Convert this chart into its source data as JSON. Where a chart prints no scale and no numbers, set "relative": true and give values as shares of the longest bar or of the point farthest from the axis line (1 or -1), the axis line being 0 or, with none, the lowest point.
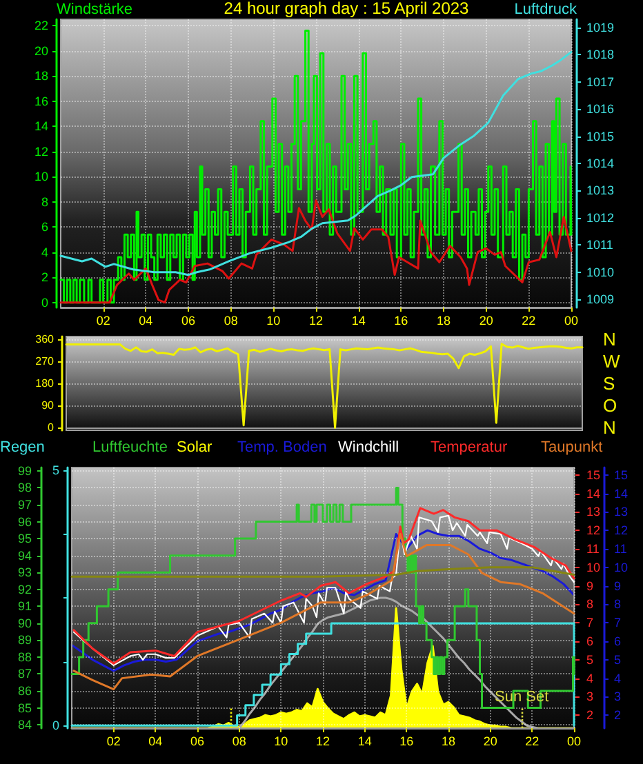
{
  "chart_data": [
    {
      "type": "line",
      "title": "24 hour graph day : 15 April 2023",
      "ylabel": "Windstärke",
      "y2label": "Luftdruck",
      "xlim": [
        "2023-04-15T00:00",
        "2023-04-16T00:00"
      ],
      "xticks": [
        {
          "value": "2023-04-15T02:00",
          "label": "02"
        },
        {
          "value": "2023-04-15T04:00",
          "label": "04"
        },
        {
          "value": "2023-04-15T06:00",
          "label": "06"
        },
        {
          "value": "2023-04-15T08:00",
          "label": "08"
        },
        {
          "value": "2023-04-15T10:00",
          "label": "10"
        },
        {
          "value": "2023-04-15T12:00",
          "label": "12"
        },
        {
          "value": "2023-04-15T14:00",
          "label": "14"
        },
        {
          "value": "2023-04-15T16:00",
          "label": "16"
        },
        {
          "value": "2023-04-15T18:00",
          "label": "18"
        },
        {
          "value": "2023-04-15T20:00",
          "label": "20"
        },
        {
          "value": "2023-04-15T22:00",
          "label": "22"
        },
        {
          "value": "2023-04-16T00:00",
          "label": "00"
        }
      ],
      "ylim": [
        -0.4,
        22.5
      ],
      "yticks": [
        0,
        2,
        4,
        6,
        8,
        10,
        12,
        14,
        16,
        18,
        20,
        22
      ],
      "y2lim": [
        1008.7,
        1019.3
      ],
      "y2ticks": [
        1009,
        1010,
        1011,
        1012,
        1013,
        1014,
        1015,
        1016,
        1017,
        1018,
        1019
      ],
      "grid": true,
      "series": [
        {
          "type": "step",
          "color": "#00ee00",
          "x": [
            "2023-04-15T00:00",
            "2023-04-15T00:09",
            "2023-04-15T00:18",
            "2023-04-15T00:27",
            "2023-04-15T00:36",
            "2023-04-15T00:45",
            "2023-04-15T00:54",
            "2023-04-15T01:06",
            "2023-04-15T01:18",
            "2023-04-15T01:27",
            "2023-04-15T01:42",
            "2023-04-15T01:51",
            "2023-04-15T02:00",
            "2023-04-15T02:12",
            "2023-04-15T02:21",
            "2023-04-15T02:30",
            "2023-04-15T02:42",
            "2023-04-15T02:51",
            "2023-04-15T03:00",
            "2023-04-15T03:09",
            "2023-04-15T03:18",
            "2023-04-15T03:27",
            "2023-04-15T03:34",
            "2023-04-15T03:39",
            "2023-04-15T03:48",
            "2023-04-15T03:57",
            "2023-04-15T04:06",
            "2023-04-15T04:15",
            "2023-04-15T04:24",
            "2023-04-15T04:33",
            "2023-04-15T04:42",
            "2023-04-15T04:51",
            "2023-04-15T05:00",
            "2023-04-15T05:09",
            "2023-04-15T05:18",
            "2023-04-15T05:27",
            "2023-04-15T05:36",
            "2023-04-15T05:45",
            "2023-04-15T05:54",
            "2023-04-15T06:03",
            "2023-04-15T06:12",
            "2023-04-15T06:18",
            "2023-04-15T06:24",
            "2023-04-15T06:33",
            "2023-04-15T06:39",
            "2023-04-15T06:48",
            "2023-04-15T06:57",
            "2023-04-15T07:06",
            "2023-04-15T07:15",
            "2023-04-15T07:24",
            "2023-04-15T07:33",
            "2023-04-15T07:42",
            "2023-04-15T07:51",
            "2023-04-15T08:06",
            "2023-04-15T08:15",
            "2023-04-15T08:24",
            "2023-04-15T08:33",
            "2023-04-15T08:42",
            "2023-04-15T08:54",
            "2023-04-15T09:03",
            "2023-04-15T09:12",
            "2023-04-15T09:24",
            "2023-04-15T09:33",
            "2023-04-15T09:42",
            "2023-04-15T09:57",
            "2023-04-15T10:06",
            "2023-04-15T10:15",
            "2023-04-15T10:24",
            "2023-04-15T10:33",
            "2023-04-15T10:42",
            "2023-04-15T10:51",
            "2023-04-15T11:00",
            "2023-04-15T11:09",
            "2023-04-15T11:18",
            "2023-04-15T11:30",
            "2023-04-15T11:39",
            "2023-04-15T11:48",
            "2023-04-15T11:54",
            "2023-04-15T12:03",
            "2023-04-15T12:12",
            "2023-04-15T12:21",
            "2023-04-15T12:30",
            "2023-04-15T12:39",
            "2023-04-15T12:48",
            "2023-04-15T12:57",
            "2023-04-15T13:12",
            "2023-04-15T13:21",
            "2023-04-15T13:30",
            "2023-04-15T13:39",
            "2023-04-15T13:48",
            "2023-04-15T13:57",
            "2023-04-15T14:12",
            "2023-04-15T14:21",
            "2023-04-15T14:30",
            "2023-04-15T14:42",
            "2023-04-15T14:51",
            "2023-04-15T15:00",
            "2023-04-15T15:09",
            "2023-04-15T15:18",
            "2023-04-15T15:30",
            "2023-04-15T15:39",
            "2023-04-15T15:48",
            "2023-04-15T16:00",
            "2023-04-15T16:09",
            "2023-04-15T16:18",
            "2023-04-15T16:27",
            "2023-04-15T16:36",
            "2023-04-15T16:48",
            "2023-04-15T16:57",
            "2023-04-15T17:06",
            "2023-04-15T17:15",
            "2023-04-15T17:24",
            "2023-04-15T17:36",
            "2023-04-15T17:48",
            "2023-04-15T17:57",
            "2023-04-15T18:06",
            "2023-04-15T18:15",
            "2023-04-15T18:24",
            "2023-04-15T18:42",
            "2023-04-15T18:51",
            "2023-04-15T19:00",
            "2023-04-15T19:09",
            "2023-04-15T19:18",
            "2023-04-15T19:30",
            "2023-04-15T19:39",
            "2023-04-15T19:48",
            "2023-04-15T19:57",
            "2023-04-15T20:06",
            "2023-04-15T20:15",
            "2023-04-15T20:24",
            "2023-04-15T20:33",
            "2023-04-15T20:48",
            "2023-04-15T20:57",
            "2023-04-15T21:06",
            "2023-04-15T21:15",
            "2023-04-15T21:24",
            "2023-04-15T21:33",
            "2023-04-15T21:42",
            "2023-04-15T21:51",
            "2023-04-15T22:00",
            "2023-04-15T22:12",
            "2023-04-15T22:21",
            "2023-04-15T22:30",
            "2023-04-15T22:39",
            "2023-04-15T22:48",
            "2023-04-15T22:57",
            "2023-04-15T23:06",
            "2023-04-15T23:12",
            "2023-04-15T23:18",
            "2023-04-15T23:27",
            "2023-04-15T23:36",
            "2023-04-15T23:45",
            "2023-04-15T23:58",
            "2023-04-16T00:00"
          ],
          "values": [
            1.8,
            0,
            1.8,
            0,
            1.8,
            0,
            1.8,
            0,
            1.8,
            0,
            0,
            1.8,
            0,
            1.8,
            0,
            1.8,
            3.6,
            1.8,
            5.4,
            3.6,
            5.4,
            1.8,
            7.2,
            3.6,
            5.4,
            1.8,
            5.4,
            3.6,
            1.8,
            5.4,
            3.6,
            5.4,
            1.8,
            5.4,
            3.6,
            5.4,
            1.8,
            5.4,
            3.6,
            5.4,
            1.8,
            7.2,
            3.6,
            10.8,
            5.4,
            9.0,
            3.6,
            7.2,
            5.4,
            9.0,
            3.6,
            7.2,
            5.4,
            10.8,
            5.4,
            9.0,
            3.6,
            7.2,
            10.8,
            5.4,
            9.0,
            14.4,
            5.4,
            10.8,
            16.2,
            7.2,
            12.6,
            5.4,
            10.8,
            7.2,
            12.6,
            18.0,
            9.0,
            14.4,
            21.6,
            7.2,
            12.6,
            18.0,
            9.0,
            19.8,
            7.2,
            12.6,
            5.4,
            10.8,
            7.2,
            18.0,
            9.0,
            12.6,
            5.4,
            18.0,
            7.2,
            19.8,
            9.0,
            12.6,
            14.4,
            7.2,
            10.8,
            5.4,
            9.0,
            5.4,
            9.0,
            3.6,
            12.6,
            5.4,
            9.0,
            3.6,
            7.2,
            16.2,
            5.4,
            9.0,
            3.6,
            10.8,
            5.4,
            14.4,
            5.4,
            9.0,
            3.6,
            7.2,
            12.6,
            5.4,
            9.0,
            3.6,
            7.2,
            5.4,
            9.0,
            3.6,
            7.2,
            10.8,
            5.4,
            9.0,
            3.6,
            10.8,
            5.4,
            7.2,
            3.6,
            9.0,
            1.8,
            5.4,
            3.6,
            9.0,
            14.4,
            5.4,
            10.8,
            3.6,
            12.6,
            5.4,
            14.4,
            7.2,
            16.2,
            5.4,
            12.6,
            5.4,
            10.8,
            5.4
          ]
        },
        {
          "color": "#dd1111",
          "x": [
            "2023-04-15T00:00",
            "2023-04-15T02:18",
            "2023-04-15T02:39",
            "2023-04-15T03:12",
            "2023-04-15T03:27",
            "2023-04-15T04:00",
            "2023-04-15T04:18",
            "2023-04-15T04:36",
            "2023-04-15T04:54",
            "2023-04-15T05:06",
            "2023-04-15T05:36",
            "2023-04-15T05:54",
            "2023-04-15T06:18",
            "2023-04-15T06:54",
            "2023-04-15T07:36",
            "2023-04-15T07:54",
            "2023-04-15T08:30",
            "2023-04-15T09:00",
            "2023-04-15T09:12",
            "2023-04-15T09:54",
            "2023-04-15T10:30",
            "2023-04-15T10:54",
            "2023-04-15T11:12",
            "2023-04-15T11:30",
            "2023-04-15T11:48",
            "2023-04-15T12:00",
            "2023-04-15T12:18",
            "2023-04-15T12:36",
            "2023-04-15T13:00",
            "2023-04-15T13:36",
            "2023-04-15T13:48",
            "2023-04-15T14:12",
            "2023-04-15T14:36",
            "2023-04-15T15:06",
            "2023-04-15T15:24",
            "2023-04-15T15:42",
            "2023-04-15T15:54",
            "2023-04-15T16:18",
            "2023-04-15T16:48",
            "2023-04-15T16:54",
            "2023-04-15T17:24",
            "2023-04-15T17:48",
            "2023-04-15T18:18",
            "2023-04-15T18:48",
            "2023-04-15T19:06",
            "2023-04-15T19:12",
            "2023-04-15T19:36",
            "2023-04-15T20:00",
            "2023-04-15T20:24",
            "2023-04-15T20:42",
            "2023-04-15T20:54",
            "2023-04-15T21:42",
            "2023-04-15T22:00",
            "2023-04-15T22:30",
            "2023-04-15T23:00",
            "2023-04-15T23:18",
            "2023-04-15T23:39",
            "2023-04-16T00:00"
          ],
          "values": [
            0,
            0,
            1.4,
            2.3,
            1.8,
            2.7,
            1.4,
            0.2,
            0,
            1.0,
            1.8,
            1.6,
            2.9,
            3.1,
            2.5,
            1.9,
            3.1,
            2.7,
            3.8,
            5.0,
            4.6,
            4.1,
            7.5,
            6.5,
            5.8,
            8.1,
            6.8,
            7.4,
            5.5,
            4.1,
            5.9,
            5.0,
            5.8,
            5.8,
            5.2,
            2.2,
            3.6,
            3.2,
            2.7,
            6.5,
            4.0,
            3.2,
            4.5,
            3.6,
            2.7,
            1.4,
            4.0,
            4.3,
            3.8,
            4.0,
            2.9,
            1.6,
            3.2,
            3.4,
            5.6,
            3.6,
            6.8,
            4.1
          ]
        },
        {
          "color": "#40e0e0",
          "axis": "y2",
          "x": [
            "2023-04-15T00:00",
            "2023-04-15T01:00",
            "2023-04-15T01:27",
            "2023-04-15T02:06",
            "2023-04-15T02:30",
            "2023-04-15T03:24",
            "2023-04-15T04:24",
            "2023-04-15T05:24",
            "2023-04-15T06:00",
            "2023-04-15T06:24",
            "2023-04-15T07:00",
            "2023-04-15T07:54",
            "2023-04-15T08:54",
            "2023-04-15T09:54",
            "2023-04-15T10:42",
            "2023-04-15T11:18",
            "2023-04-15T11:48",
            "2023-04-15T12:18",
            "2023-04-15T13:30",
            "2023-04-15T13:54",
            "2023-04-15T14:54",
            "2023-04-15T15:30",
            "2023-04-15T16:00",
            "2023-04-15T16:30",
            "2023-04-15T17:30",
            "2023-04-15T18:00",
            "2023-04-15T18:48",
            "2023-04-15T19:24",
            "2023-04-15T20:06",
            "2023-04-15T20:48",
            "2023-04-15T21:30",
            "2023-04-15T22:06",
            "2023-04-15T22:36",
            "2023-04-15T23:06",
            "2023-04-15T23:30",
            "2023-04-16T00:00"
          ],
          "values": [
            1010.6,
            1010.4,
            1010.5,
            1010.2,
            1010.3,
            1010.1,
            1010.0,
            1010.0,
            1009.9,
            1010.0,
            1010.1,
            1010.4,
            1010.7,
            1010.9,
            1011.1,
            1011.3,
            1011.6,
            1011.8,
            1011.9,
            1012.1,
            1012.8,
            1013.0,
            1013.2,
            1013.5,
            1013.6,
            1014.2,
            1014.7,
            1015.0,
            1015.5,
            1016.5,
            1017.1,
            1017.3,
            1017.4,
            1017.6,
            1017.8,
            1018.1
          ]
        }
      ]
    },
    {
      "type": "line",
      "categories": [
        null,
        null,
        null,
        null,
        null,
        null,
        null,
        null,
        null,
        null,
        null,
        null,
        null,
        null,
        null,
        null,
        null,
        null,
        null,
        null,
        null,
        null,
        null,
        null,
        null,
        null,
        null,
        null,
        null,
        null,
        null,
        null,
        null,
        null,
        null,
        null,
        null,
        null,
        null,
        null,
        null,
        null,
        null,
        null,
        null,
        null,
        null,
        null,
        null,
        null,
        null,
        null,
        null,
        null,
        null,
        null,
        null,
        null,
        null,
        null,
        null,
        null,
        null,
        null,
        null,
        null,
        null,
        null,
        null,
        null,
        null,
        null,
        null,
        null,
        null,
        null,
        null,
        null,
        null,
        null,
        null,
        null,
        null,
        null,
        null,
        null,
        null,
        null,
        null,
        null,
        null,
        null,
        null,
        null,
        null,
        null,
        null
      ],
      "ylim": [
        -10,
        370
      ],
      "yticks": [
        0,
        90,
        180,
        270,
        360
      ],
      "grid": "y",
      "tick_labels": "y",
      "annotations": [
        "N",
        "W",
        "S",
        "O",
        "N"
      ],
      "series": [
        {
          "color": "#f0f000",
          "values": [
            338,
            338,
            338,
            338,
            338,
            338,
            338,
            338,
            338,
            338,
            338,
            320,
            312,
            326,
            310,
            308,
            318,
            302,
            304,
            300,
            296,
            320,
            316,
            318,
            326,
            306,
            316,
            320,
            310,
            316,
            322,
            308,
            298,
            10,
            312,
            316,
            308,
            314,
            320,
            314,
            310,
            316,
            318,
            314,
            312,
            318,
            322,
            318,
            315,
            318,
            0,
            318,
            314,
            318,
            322,
            320,
            318,
            322,
            325,
            322,
            320,
            318,
            314,
            318,
            322,
            316,
            308,
            306,
            304,
            300,
            298,
            300,
            280,
            242,
            290,
            300,
            296,
            302,
            310,
            330,
            20,
            340,
            328,
            325,
            332,
            326,
            320,
            324,
            326,
            328,
            330,
            330,
            328,
            324,
            322,
            326,
            326
          ]
        }
      ]
    },
    {
      "type": "line",
      "legend": "top",
      "xlim": [
        "2023-04-15T00:00",
        "2023-04-16T00:00"
      ],
      "xticks": [
        {
          "value": "2023-04-15T02:00",
          "label": "02"
        },
        {
          "value": "2023-04-15T04:00",
          "label": "04"
        },
        {
          "value": "2023-04-15T06:00",
          "label": "06"
        },
        {
          "value": "2023-04-15T08:00",
          "label": "08"
        },
        {
          "value": "2023-04-15T10:00",
          "label": "10"
        },
        {
          "value": "2023-04-15T12:00",
          "label": "12"
        },
        {
          "value": "2023-04-15T14:00",
          "label": "14"
        },
        {
          "value": "2023-04-15T16:00",
          "label": "16"
        },
        {
          "value": "2023-04-15T18:00",
          "label": "18"
        },
        {
          "value": "2023-04-15T20:00",
          "label": "20"
        },
        {
          "value": "2023-04-15T22:00",
          "label": "22"
        },
        {
          "value": "2023-04-16T00:00",
          "label": "00"
        }
      ],
      "ylim": [
        83.8,
        99.2
      ],
      "yticks": [
        84,
        85,
        86,
        87,
        88,
        89,
        90,
        91,
        92,
        93,
        94,
        95,
        96,
        97,
        98,
        99
      ],
      "y2lim": [
        -0.05,
        5.05
      ],
      "y2ticks": [
        0,
        {
          "value": 1.25,
          "label": null
        },
        {
          "value": 2.5,
          "label": null
        },
        {
          "value": 3.75,
          "label": null
        },
        5
      ],
      "y3lim": [
        1.3,
        15.4
      ],
      "y3ticks": [
        2,
        3,
        4,
        5,
        6,
        7,
        8,
        9,
        10,
        11,
        12,
        13,
        14,
        15
      ],
      "grid": true,
      "ref_lines": [
        {
          "axis": "x",
          "value": "2023-04-15T07:36",
          "color": "#e8e800",
          "line_style": "dotted"
        },
        {
          "axis": "x",
          "value": "2023-04-15T21:30",
          "label": "Sun Set",
          "color": "#d8d840",
          "line_style": "dotted"
        }
      ],
      "series": [
        {
          "name": "Regen",
          "type": "step",
          "axis": "y2",
          "color": "#40e0e0",
          "x": [
            "2023-04-15T00:00",
            "2023-04-15T07:54",
            "2023-04-15T08:18",
            "2023-04-15T08:42",
            "2023-04-15T09:06",
            "2023-04-15T09:30",
            "2023-04-15T10:00",
            "2023-04-15T10:24",
            "2023-04-15T10:48",
            "2023-04-15T11:12",
            "2023-04-15T12:24",
            "2023-04-16T00:00",
            "2023-04-16T00:00"
          ],
          "values": [
            0,
            0.2,
            0.4,
            0.6,
            0.8,
            1.0,
            1.2,
            1.4,
            1.6,
            1.8,
            2.0,
            2.0,
            0
          ]
        },
        {
          "name": "Luftfeuchte",
          "type": "step",
          "color": "#30c830",
          "x": [
            "2023-04-15T00:00",
            "2023-04-15T00:21",
            "2023-04-15T00:33",
            "2023-04-15T00:48",
            "2023-04-15T01:12",
            "2023-04-15T01:45",
            "2023-04-15T02:12",
            "2023-04-15T04:42",
            "2023-04-15T07:48",
            "2023-04-15T08:48",
            "2023-04-15T10:45",
            "2023-04-15T10:51",
            "2023-04-15T11:27",
            "2023-04-15T11:36",
            "2023-04-15T11:42",
            "2023-04-15T12:00",
            "2023-04-15T12:12",
            "2023-04-15T12:21",
            "2023-04-15T12:30",
            "2023-04-15T12:39",
            "2023-04-15T12:48",
            "2023-04-15T12:57",
            "2023-04-15T13:21",
            "2023-04-15T15:30",
            "2023-04-15T15:36",
            "2023-04-15T15:48",
            "2023-04-15T15:57",
            "2023-04-15T16:03",
            "2023-04-15T16:09",
            "2023-04-15T16:15",
            "2023-04-15T16:21",
            "2023-04-15T16:27",
            "2023-04-15T16:36",
            "2023-04-15T16:42",
            "2023-04-15T16:48",
            "2023-04-15T16:57",
            "2023-04-15T17:12",
            "2023-04-15T17:18",
            "2023-04-15T17:24",
            "2023-04-15T17:30",
            "2023-04-15T17:36",
            "2023-04-15T17:42",
            "2023-04-15T17:48",
            "2023-04-15T17:57",
            "2023-04-15T18:18",
            "2023-04-15T18:48",
            "2023-04-15T18:57",
            "2023-04-15T19:21",
            "2023-04-15T19:30",
            "2023-04-15T19:36",
            "2023-04-15T21:06",
            "2023-04-15T21:48",
            "2023-04-15T22:24",
            "2023-04-15T23:57",
            "2023-04-16T00:00"
          ],
          "values": [
            87,
            88,
            89,
            90,
            91,
            92,
            93,
            94,
            95,
            96,
            97,
            96,
            97,
            96,
            97,
            96,
            97,
            96,
            97,
            96,
            97,
            96,
            97,
            98,
            97,
            95,
            94,
            93,
            94,
            93,
            94,
            91,
            90,
            91,
            90,
            89,
            88,
            87,
            88,
            87,
            88,
            87,
            88,
            89,
            91,
            92,
            91,
            89,
            87,
            85,
            86,
            85,
            86,
            88,
            87
          ]
        },
        {
          "name": "Windchill",
          "axis": "y3",
          "color": "#ffffff",
          "x": [
            "2023-04-15T00:06",
            "2023-04-15T01:00",
            "2023-04-15T02:00",
            "2023-04-15T02:48",
            "2023-04-15T03:12",
            "2023-04-15T03:24",
            "2023-04-15T03:36",
            "2023-04-15T04:00",
            "2023-04-15T04:30",
            "2023-04-15T04:54",
            "2023-04-15T06:00",
            "2023-04-15T07:00",
            "2023-04-15T07:24",
            "2023-04-15T07:30",
            "2023-04-15T08:00",
            "2023-04-15T08:30",
            "2023-04-15T08:36",
            "2023-04-15T09:12",
            "2023-04-15T09:36",
            "2023-04-15T09:42",
            "2023-04-15T10:00",
            "2023-04-15T10:06",
            "2023-04-15T10:36",
            "2023-04-15T11:06",
            "2023-04-15T11:12",
            "2023-04-15T11:30",
            "2023-04-15T11:42",
            "2023-04-15T11:48",
            "2023-04-15T12:06",
            "2023-04-15T12:12",
            "2023-04-15T12:36",
            "2023-04-15T13:00",
            "2023-04-15T13:06",
            "2023-04-15T13:15",
            "2023-04-15T13:48",
            "2023-04-15T13:54",
            "2023-04-15T14:36",
            "2023-04-15T14:42",
            "2023-04-15T15:12",
            "2023-04-15T15:18",
            "2023-04-15T15:30",
            "2023-04-15T15:42",
            "2023-04-15T15:54",
            "2023-04-15T16:12",
            "2023-04-15T16:30",
            "2023-04-15T16:36",
            "2023-04-15T17:12",
            "2023-04-15T17:30",
            "2023-04-15T17:36",
            "2023-04-15T18:00",
            "2023-04-15T18:12",
            "2023-04-15T18:24",
            "2023-04-15T18:48",
            "2023-04-15T18:54",
            "2023-04-15T19:24",
            "2023-04-15T19:30",
            "2023-04-15T19:51",
            "2023-04-15T19:57",
            "2023-04-15T20:30",
            "2023-04-15T20:48",
            "2023-04-15T20:54",
            "2023-04-15T21:30",
            "2023-04-15T22:00",
            "2023-04-15T22:18",
            "2023-04-15T22:24",
            "2023-04-15T22:54",
            "2023-04-15T23:00",
            "2023-04-15T23:24",
            "2023-04-15T23:30",
            "2023-04-15T23:48",
            "2023-04-16T00:00"
          ],
          "values": [
            6.5,
            5.6,
            4.7,
            5.2,
            5.3,
            5.0,
            5.3,
            5.3,
            5.1,
            5.1,
            6.3,
            6.8,
            6.2,
            6.9,
            7.0,
            6.2,
            7.2,
            7.5,
            7.0,
            7.6,
            7.0,
            7.9,
            8.1,
            7.0,
            8.3,
            7.9,
            7.3,
            8.6,
            8.0,
            8.9,
            8.9,
            7.5,
            8.7,
            8.3,
            7.8,
            8.7,
            8.3,
            9.0,
            8.7,
            9.4,
            9.6,
            12.1,
            10.7,
            11.7,
            11.0,
            12.7,
            12.5,
            11.9,
            12.7,
            12.8,
            12.0,
            12.4,
            11.7,
            12.3,
            11.7,
            11.9,
            11.3,
            11.9,
            11.8,
            11.0,
            11.6,
            11.3,
            11.0,
            10.6,
            10.9,
            10.1,
            10.5,
            9.9,
            10.2,
            9.5,
            9.2
          ]
        },
        {
          "name": "Temperatur",
          "axis": "y3",
          "color": "#ff2a2a",
          "x": [
            "2023-04-15T00:06",
            "2023-04-15T01:00",
            "2023-04-15T02:00",
            "2023-04-15T02:48",
            "2023-04-15T04:00",
            "2023-04-15T04:54",
            "2023-04-15T06:00",
            "2023-04-15T08:00",
            "2023-04-15T10:00",
            "2023-04-15T10:54",
            "2023-04-15T11:12",
            "2023-04-15T11:54",
            "2023-04-15T12:36",
            "2023-04-15T13:15",
            "2023-04-15T14:06",
            "2023-04-15T15:00",
            "2023-04-15T15:24",
            "2023-04-15T15:42",
            "2023-04-15T15:51",
            "2023-04-15T16:06",
            "2023-04-15T16:39",
            "2023-04-15T17:18",
            "2023-04-15T17:45",
            "2023-04-15T18:18",
            "2023-04-15T18:57",
            "2023-04-15T19:30",
            "2023-04-15T20:18",
            "2023-04-15T21:12",
            "2023-04-15T22:06",
            "2023-04-15T22:54",
            "2023-04-15T23:36",
            "2023-04-16T00:00"
          ],
          "values": [
            6.6,
            5.6,
            4.8,
            5.4,
            5.5,
            5.2,
            6.5,
            7.1,
            8.2,
            8.6,
            8.4,
            9.0,
            9.2,
            8.6,
            9.1,
            9.5,
            9.8,
            12.2,
            11.3,
            11.5,
            13.2,
            12.9,
            13.1,
            12.7,
            12.5,
            12.0,
            12.0,
            11.5,
            11.1,
            10.5,
            10.1,
            9.4
          ]
        },
        {
          "name": "Taupunkt",
          "axis": "y3",
          "color": "#e07828",
          "x": [
            "2023-04-15T00:06",
            "2023-04-15T01:00",
            "2023-04-15T02:00",
            "2023-04-15T02:24",
            "2023-04-15T03:48",
            "2023-04-15T04:42",
            "2023-04-15T06:00",
            "2023-04-15T08:00",
            "2023-04-15T10:00",
            "2023-04-15T11:54",
            "2023-04-15T13:15",
            "2023-04-15T14:06",
            "2023-04-15T15:18",
            "2023-04-15T15:42",
            "2023-04-15T16:00",
            "2023-04-15T16:57",
            "2023-04-15T18:06",
            "2023-04-15T18:57",
            "2023-04-15T19:36",
            "2023-04-15T20:30",
            "2023-04-15T21:24",
            "2023-04-15T22:30",
            "2023-04-16T00:00"
          ],
          "values": [
            4.4,
            3.9,
            3.4,
            4.0,
            4.2,
            4.1,
            5.2,
            6.1,
            7.0,
            8.1,
            8.1,
            8.5,
            9.3,
            11.8,
            10.6,
            11.2,
            11.2,
            10.7,
            9.7,
            9.2,
            9.1,
            8.6,
            7.5
          ]
        },
        {
          "axis": "y3",
          "color": "#868610",
          "x": [
            "2023-04-15T00:00",
            "2023-04-15T12:00",
            "2023-04-15T15:30",
            "2023-04-15T16:30",
            "2023-04-15T18:00",
            "2023-04-15T20:00",
            "2023-04-15T22:00",
            "2023-04-16T00:00"
          ],
          "values": [
            9.5,
            9.5,
            9.6,
            9.8,
            9.9,
            10.0,
            10.0,
            9.6
          ]
        }
      ]
    },
    {
      "type": "area",
      "relative": true,
      "legend": "top",
      "tick_labels": false,
      "categories": [
        null,
        null,
        null,
        null,
        null,
        null,
        null,
        null,
        null,
        null,
        null,
        null,
        null,
        null,
        null,
        null,
        null,
        null,
        null,
        null,
        null,
        null,
        null,
        null,
        null,
        null,
        null,
        null,
        null,
        null,
        null,
        null,
        null,
        null,
        null,
        null,
        null,
        null,
        null,
        null,
        null,
        null,
        null,
        null,
        null,
        null,
        null,
        null,
        null,
        null,
        null,
        null,
        null,
        null,
        null,
        null,
        null,
        null,
        null,
        null,
        null,
        null,
        null,
        null,
        null,
        null,
        null,
        null,
        null,
        null,
        null,
        null,
        null,
        null,
        null,
        null,
        null,
        null,
        null,
        null,
        null,
        null,
        null,
        null,
        null,
        null,
        null,
        null,
        null,
        null,
        null,
        null,
        null,
        null,
        null,
        null,
        null
      ],
      "series": [
        {
          "name": "Solar",
          "color": "#ffff00",
          "values": [
            0,
            0,
            0,
            0,
            0,
            0,
            0,
            0,
            0,
            0,
            0,
            0,
            0,
            0,
            0,
            0,
            0,
            0,
            0,
            0,
            0,
            0,
            0,
            0,
            0,
            0,
            0,
            0.01,
            0.03,
            0.02,
            0.04,
            0.01,
            0.01,
            0.03,
            0.06,
            0.07,
            0.08,
            0.1,
            0.09,
            0.1,
            0.12,
            0.11,
            0.12,
            0.14,
            0.13,
            0.19,
            0.16,
            0.3,
            0.2,
            0.15,
            0.11,
            0.09,
            0.07,
            0.1,
            0.12,
            0.09,
            0.1,
            0.09,
            0.08,
            0.12,
            0.1,
            0.25,
            0.92,
            0.45,
            0.15,
            0.28,
            0.34,
            0.26,
            0.5,
            0.63,
            0.28,
            0.18,
            0.2,
            0.16,
            0.1,
            0.09,
            0.08,
            0.06,
            0.05,
            0.03,
            0.02,
            0.02,
            0.01,
            0.01,
            0,
            0,
            0,
            0,
            0,
            0,
            0,
            0,
            0,
            0,
            0,
            0,
            0
          ]
        },
        {
          "type": "line",
          "color": "#a8a8a8",
          "values": [
            null,
            null,
            null,
            null,
            null,
            null,
            null,
            null,
            null,
            null,
            null,
            null,
            null,
            null,
            null,
            null,
            null,
            null,
            null,
            null,
            null,
            null,
            null,
            null,
            null,
            null,
            null,
            null,
            null,
            null,
            null,
            null,
            0,
            0.05,
            0.11,
            0.16,
            0.22,
            0.27,
            0.33,
            0.38,
            0.43,
            0.48,
            0.53,
            0.58,
            0.63,
            0.69,
            0.74,
            0.8,
            0.83,
            0.85,
            0.86,
            0.87,
            0.88,
            0.9,
            0.92,
            0.94,
            0.96,
            0.98,
            0.99,
            1,
            1,
            0.99,
            0.97,
            0.94,
            0.92,
            0.9,
            0.87,
            0.85,
            0.81,
            0.77,
            0.73,
            0.69,
            0.64,
            0.59,
            0.54,
            0.5,
            0.45,
            0.41,
            0.37,
            0.32,
            0.28,
            0.24,
            0.2,
            0.16,
            0.12,
            0.08,
            0.05,
            0.02,
            0.01,
            0,
            null,
            null,
            null,
            null,
            null,
            null,
            null
          ]
        }
      ]
    },
    {
      "type": "line",
      "legend": "top",
      "tick_labels": "y",
      "categories": [
        null,
        null,
        null,
        null,
        null,
        null,
        null,
        null,
        null,
        null,
        null,
        null,
        null,
        null,
        null,
        null,
        null,
        null,
        null,
        null,
        null,
        null,
        null,
        null,
        null,
        null,
        null,
        null,
        null,
        null,
        null,
        null,
        null,
        null,
        null,
        null,
        null,
        null,
        null,
        null,
        null,
        null,
        null,
        null,
        null,
        null,
        null,
        null,
        null
      ],
      "ylim": [
        1.3,
        15.4
      ],
      "yticks": [
        2,
        3,
        4,
        5,
        6,
        7,
        8,
        9,
        10,
        11,
        12,
        13,
        14,
        15
      ],
      "series": [
        {
          "name": "Temp. Boden",
          "color": "#1a1ad8",
          "values": [
            5.8,
            5.4,
            5.0,
            4.7,
            4.4,
            4.7,
            4.9,
            5.0,
            5.0,
            4.9,
            5.0,
            5.5,
            6.0,
            6.2,
            6.4,
            6.5,
            6.7,
            6.9,
            7.2,
            7.5,
            7.7,
            8.1,
            8.4,
            8.6,
            8.7,
            8.9,
            8.6,
            8.5,
            8.8,
            9.1,
            9.3,
            11.8,
            11.0,
            11.7,
            12.0,
            11.8,
            11.7,
            11.7,
            11.4,
            11.0,
            10.8,
            10.5,
            10.4,
            10.2,
            10.0,
            9.8,
            9.5,
            9.1,
            8.5
          ]
        }
      ]
    }
  ]
}
